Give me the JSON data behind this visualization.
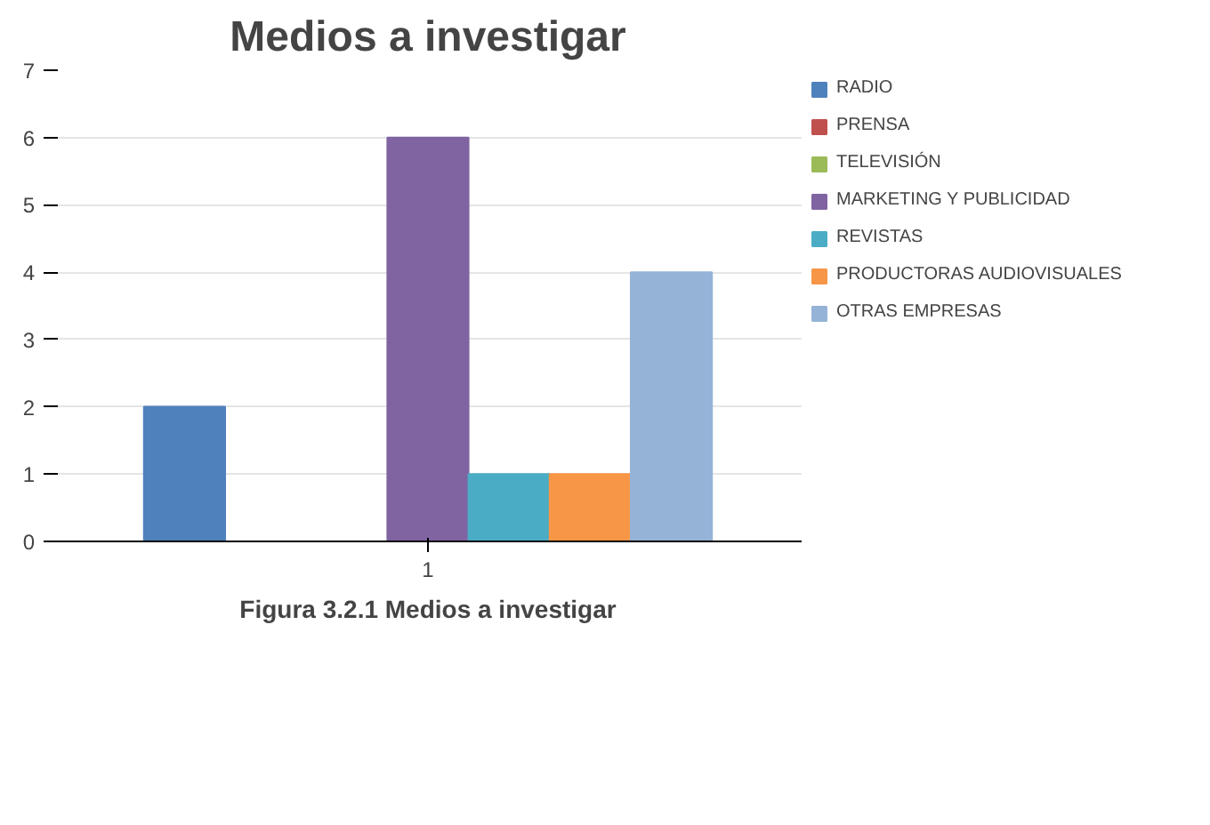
{
  "chart_data": {
    "type": "bar",
    "title": "Medios a investigar",
    "categories": [
      "1"
    ],
    "series": [
      {
        "name": "RADIO",
        "color": "#4f81bd",
        "values": [
          2
        ]
      },
      {
        "name": "PRENSA",
        "color": "#c0504d",
        "values": [
          0
        ]
      },
      {
        "name": "TELEVISIÓN",
        "color": "#9bbb59",
        "values": [
          0
        ]
      },
      {
        "name": "MARKETING Y PUBLICIDAD",
        "color": "#8064a2",
        "values": [
          6
        ]
      },
      {
        "name": "REVISTAS",
        "color": "#4bacc6",
        "values": [
          1
        ]
      },
      {
        "name": "PRODUCTORAS AUDIOVISUALES",
        "color": "#f79646",
        "values": [
          1
        ]
      },
      {
        "name": "OTRAS EMPRESAS",
        "color": "#95b3d7",
        "values": [
          4
        ]
      }
    ],
    "ylim": [
      0,
      7
    ],
    "yticks": [
      0,
      1,
      2,
      3,
      4,
      5,
      6,
      7
    ],
    "grid": "y",
    "legend": "right",
    "annotations": [
      "Figura 3.2.1 Medios a investigar"
    ]
  }
}
